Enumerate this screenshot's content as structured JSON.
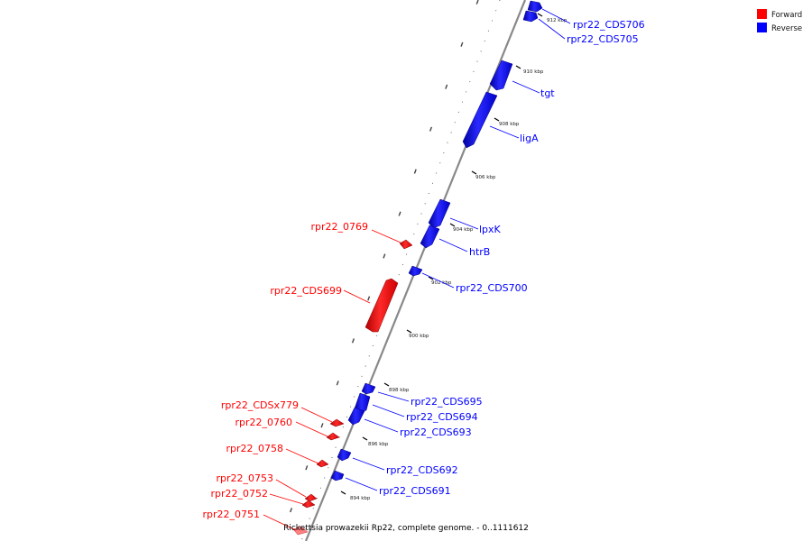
{
  "legend": {
    "items": [
      {
        "label": "Forward",
        "color": "#ff0000"
      },
      {
        "label": "Reverse",
        "color": "#0000ff"
      }
    ]
  },
  "caption": "Rickettsia prowazekii Rp22, complete genome. - 0..1111612",
  "ticks": [
    "912 kbp",
    "910 kbp",
    "908 kbp",
    "906 kbp",
    "904 kbp",
    "902 kbp",
    "900 kbp",
    "898 kbp",
    "896 kbp",
    "894 kbp"
  ],
  "genes": {
    "forward": [
      "rpr22_0769",
      "rpr22_CDS699",
      "rpr22_CDSx779",
      "rpr22_0760",
      "rpr22_0758",
      "rpr22_0753",
      "rpr22_0752",
      "rpr22_0751"
    ],
    "reverse": [
      "rpr22_CDS706",
      "rpr22_CDS705",
      "tgt",
      "ligA",
      "lpxK",
      "htrB",
      "rpr22_CDS700",
      "rpr22_CDS695",
      "rpr22_CDS694",
      "rpr22_CDS693",
      "rpr22_CDS692",
      "rpr22_CDS691"
    ]
  },
  "colors": {
    "forward": "#ff0000",
    "reverse": "#0000ff",
    "backbone": "#888888"
  }
}
